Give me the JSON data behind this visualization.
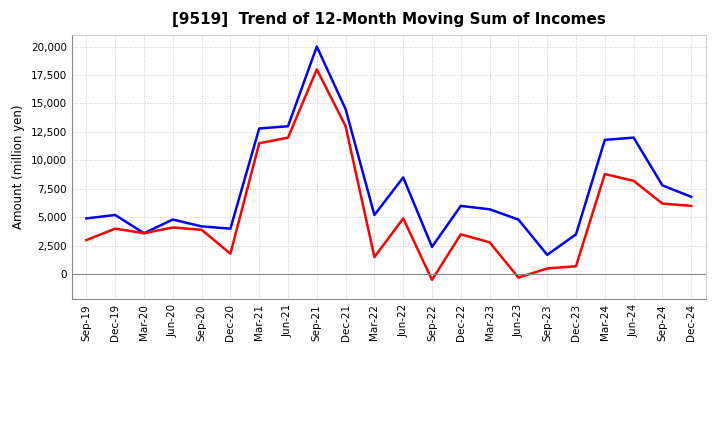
{
  "title": "[9519]  Trend of 12-Month Moving Sum of Incomes",
  "ylabel": "Amount (million yen)",
  "x_labels": [
    "Sep-19",
    "Dec-19",
    "Mar-20",
    "Jun-20",
    "Sep-20",
    "Dec-20",
    "Mar-21",
    "Jun-21",
    "Sep-21",
    "Dec-21",
    "Mar-22",
    "Jun-22",
    "Sep-22",
    "Dec-22",
    "Mar-23",
    "Jun-23",
    "Sep-23",
    "Dec-23",
    "Mar-24",
    "Jun-24",
    "Sep-24",
    "Dec-24"
  ],
  "ordinary_income": [
    4900,
    5200,
    3600,
    4800,
    4200,
    4000,
    12800,
    13000,
    20000,
    14500,
    5200,
    8500,
    2400,
    6000,
    5700,
    4800,
    1700,
    3500,
    11800,
    12000,
    7800,
    6800
  ],
  "net_income": [
    3000,
    4000,
    3600,
    4100,
    3900,
    1800,
    11500,
    12000,
    18000,
    13000,
    1500,
    4900,
    -500,
    3500,
    2800,
    -300,
    500,
    700,
    8800,
    8200,
    6200,
    6000
  ],
  "ordinary_income_color": "#0000ff",
  "net_income_color": "#ff0000",
  "background_color": "#ffffff",
  "grid_color": "#bbbbbb",
  "ylim": [
    -2200,
    21000
  ],
  "yticks": [
    0,
    2500,
    5000,
    7500,
    10000,
    12500,
    15000,
    17500,
    20000
  ],
  "line_width": 1.8,
  "title_fontsize": 11,
  "tick_fontsize": 7.5,
  "ylabel_fontsize": 8.5
}
